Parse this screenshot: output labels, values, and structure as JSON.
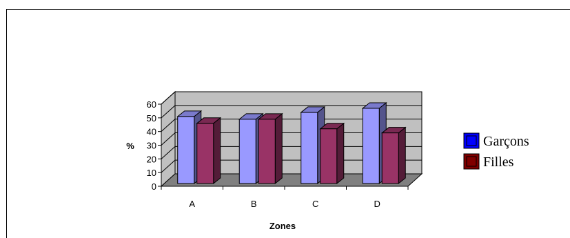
{
  "chart_data": {
    "type": "bar",
    "style": "3d-clustered-column",
    "categories": [
      "A",
      "B",
      "C",
      "D"
    ],
    "series": [
      {
        "name": "Garçons",
        "values": [
          53,
          51,
          56,
          59
        ],
        "color": "#9999ff"
      },
      {
        "name": "Filles",
        "values": [
          48,
          51,
          44,
          41
        ],
        "color": "#993366"
      }
    ],
    "xlabel": "Zones",
    "ylabel": "%",
    "ylim": [
      0,
      60
    ],
    "yticks": [
      0,
      10,
      20,
      30,
      40,
      50,
      60
    ],
    "grid": true,
    "legend_position": "right",
    "colors": {
      "wall": "#c0c0c0",
      "floor": "#808080",
      "legend_garcons": "#0000ff",
      "legend_filles": "#800000"
    }
  }
}
